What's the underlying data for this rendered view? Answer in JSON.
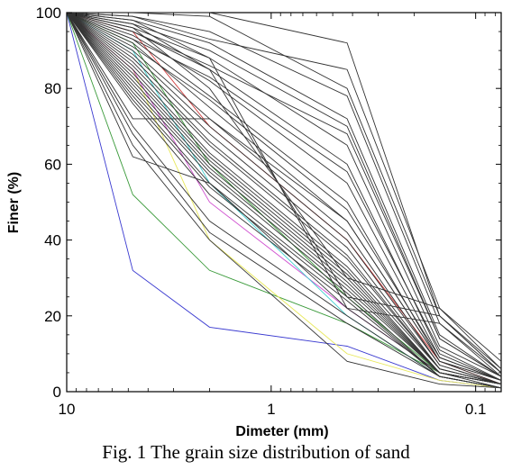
{
  "caption": "Fig. 1 The grain size distribution of sand",
  "chart_data": {
    "type": "line",
    "xlabel": "Dimeter (mm)",
    "ylabel": "Finer (%)",
    "x_scale": "log",
    "x_reversed": true,
    "xlim": [
      10,
      0.075
    ],
    "ylim": [
      0,
      100
    ],
    "x_ticks": [
      10,
      1,
      0.1
    ],
    "x_tick_labels": [
      "10",
      "1",
      "0.1"
    ],
    "y_ticks": [
      0,
      20,
      40,
      60,
      80,
      100
    ],
    "y_tick_labels": [
      "0",
      "20",
      "40",
      "60",
      "80",
      "100"
    ],
    "grid": false,
    "legend": "none",
    "x": [
      10,
      4.75,
      2,
      0.425,
      0.15,
      0.075
    ],
    "series": [
      {
        "color": "#3a3ad0",
        "values": [
          100,
          32,
          17,
          12,
          3,
          1
        ]
      },
      {
        "color": "#3a9a3a",
        "values": [
          100,
          52,
          32,
          18,
          5,
          2
        ]
      },
      {
        "color": "#e8e85a",
        "values": [
          100,
          85,
          40,
          10,
          3,
          1
        ]
      },
      {
        "color": "#d050d0",
        "values": [
          100,
          85,
          50,
          22,
          5,
          2
        ]
      },
      {
        "color": "#40d0d0",
        "values": [
          100,
          90,
          55,
          20,
          4,
          1
        ]
      },
      {
        "color": "#d03a3a",
        "values": [
          100,
          95,
          70,
          40,
          8,
          2
        ]
      },
      {
        "color": "#3a9a3a",
        "values": [
          100,
          92,
          60,
          25,
          5,
          2
        ]
      },
      {
        "color": "#333333",
        "values": [
          100,
          100,
          100,
          92,
          20,
          6
        ]
      },
      {
        "color": "#333333",
        "values": [
          100,
          100,
          99,
          80,
          20,
          5
        ]
      },
      {
        "color": "#333333",
        "values": [
          100,
          99,
          95,
          78,
          18,
          5
        ]
      },
      {
        "color": "#333333",
        "values": [
          100,
          98,
          92,
          72,
          15,
          4
        ]
      },
      {
        "color": "#333333",
        "values": [
          100,
          97,
          90,
          70,
          14,
          4
        ]
      },
      {
        "color": "#333333",
        "values": [
          100,
          96,
          88,
          65,
          12,
          4
        ]
      },
      {
        "color": "#333333",
        "values": [
          100,
          95,
          85,
          60,
          10,
          3
        ]
      },
      {
        "color": "#333333",
        "values": [
          100,
          94,
          82,
          55,
          9,
          3
        ]
      },
      {
        "color": "#333333",
        "values": [
          100,
          93,
          78,
          50,
          8,
          3
        ]
      },
      {
        "color": "#333333",
        "values": [
          100,
          92,
          75,
          45,
          8,
          3
        ]
      },
      {
        "color": "#333333",
        "values": [
          100,
          90,
          72,
          42,
          7,
          2
        ]
      },
      {
        "color": "#333333",
        "values": [
          100,
          88,
          68,
          38,
          6,
          2
        ]
      },
      {
        "color": "#333333",
        "values": [
          100,
          86,
          65,
          35,
          6,
          2
        ]
      },
      {
        "color": "#333333",
        "values": [
          100,
          84,
          62,
          32,
          5,
          2
        ]
      },
      {
        "color": "#333333",
        "values": [
          100,
          82,
          60,
          30,
          5,
          2
        ]
      },
      {
        "color": "#333333",
        "values": [
          100,
          80,
          58,
          28,
          5,
          2
        ]
      },
      {
        "color": "#333333",
        "values": [
          100,
          78,
          55,
          26,
          4,
          1
        ]
      },
      {
        "color": "#333333",
        "values": [
          100,
          76,
          52,
          24,
          4,
          1
        ]
      },
      {
        "color": "#333333",
        "values": [
          100,
          72,
          72,
          45,
          8,
          2
        ]
      },
      {
        "color": "#333333",
        "values": [
          100,
          62,
          55,
          22,
          5,
          2
        ]
      },
      {
        "color": "#333333",
        "values": [
          100,
          70,
          45,
          20,
          4,
          1
        ]
      },
      {
        "color": "#333333",
        "values": [
          100,
          68,
          42,
          18,
          4,
          1
        ]
      },
      {
        "color": "#333333",
        "values": [
          100,
          65,
          40,
          8,
          2,
          1
        ]
      },
      {
        "color": "#333333",
        "values": [
          100,
          98,
          88,
          22,
          18,
          4
        ]
      },
      {
        "color": "#333333",
        "values": [
          100,
          97,
          85,
          25,
          20,
          5
        ]
      },
      {
        "color": "#333333",
        "values": [
          100,
          96,
          80,
          30,
          22,
          6
        ]
      },
      {
        "color": "#333333",
        "values": [
          100,
          99,
          93,
          85,
          22,
          8
        ]
      },
      {
        "color": "#333333",
        "values": [
          100,
          95,
          86,
          68,
          14,
          4
        ]
      },
      {
        "color": "#333333",
        "values": [
          100,
          93,
          83,
          58,
          11,
          3
        ]
      },
      {
        "color": "#333333",
        "values": [
          100,
          91,
          77,
          48,
          9,
          3
        ]
      },
      {
        "color": "#333333",
        "values": [
          100,
          89,
          70,
          40,
          7,
          2
        ]
      },
      {
        "color": "#333333",
        "values": [
          100,
          87,
          66,
          36,
          6,
          2
        ]
      },
      {
        "color": "#333333",
        "values": [
          100,
          85,
          63,
          33,
          6,
          2
        ]
      },
      {
        "color": "#333333",
        "values": [
          100,
          83,
          61,
          31,
          5,
          2
        ]
      },
      {
        "color": "#333333",
        "values": [
          100,
          81,
          59,
          29,
          5,
          2
        ]
      },
      {
        "color": "#333333",
        "values": [
          100,
          79,
          57,
          27,
          5,
          1
        ]
      },
      {
        "color": "#333333",
        "values": [
          100,
          77,
          54,
          25,
          4,
          1
        ]
      }
    ]
  }
}
